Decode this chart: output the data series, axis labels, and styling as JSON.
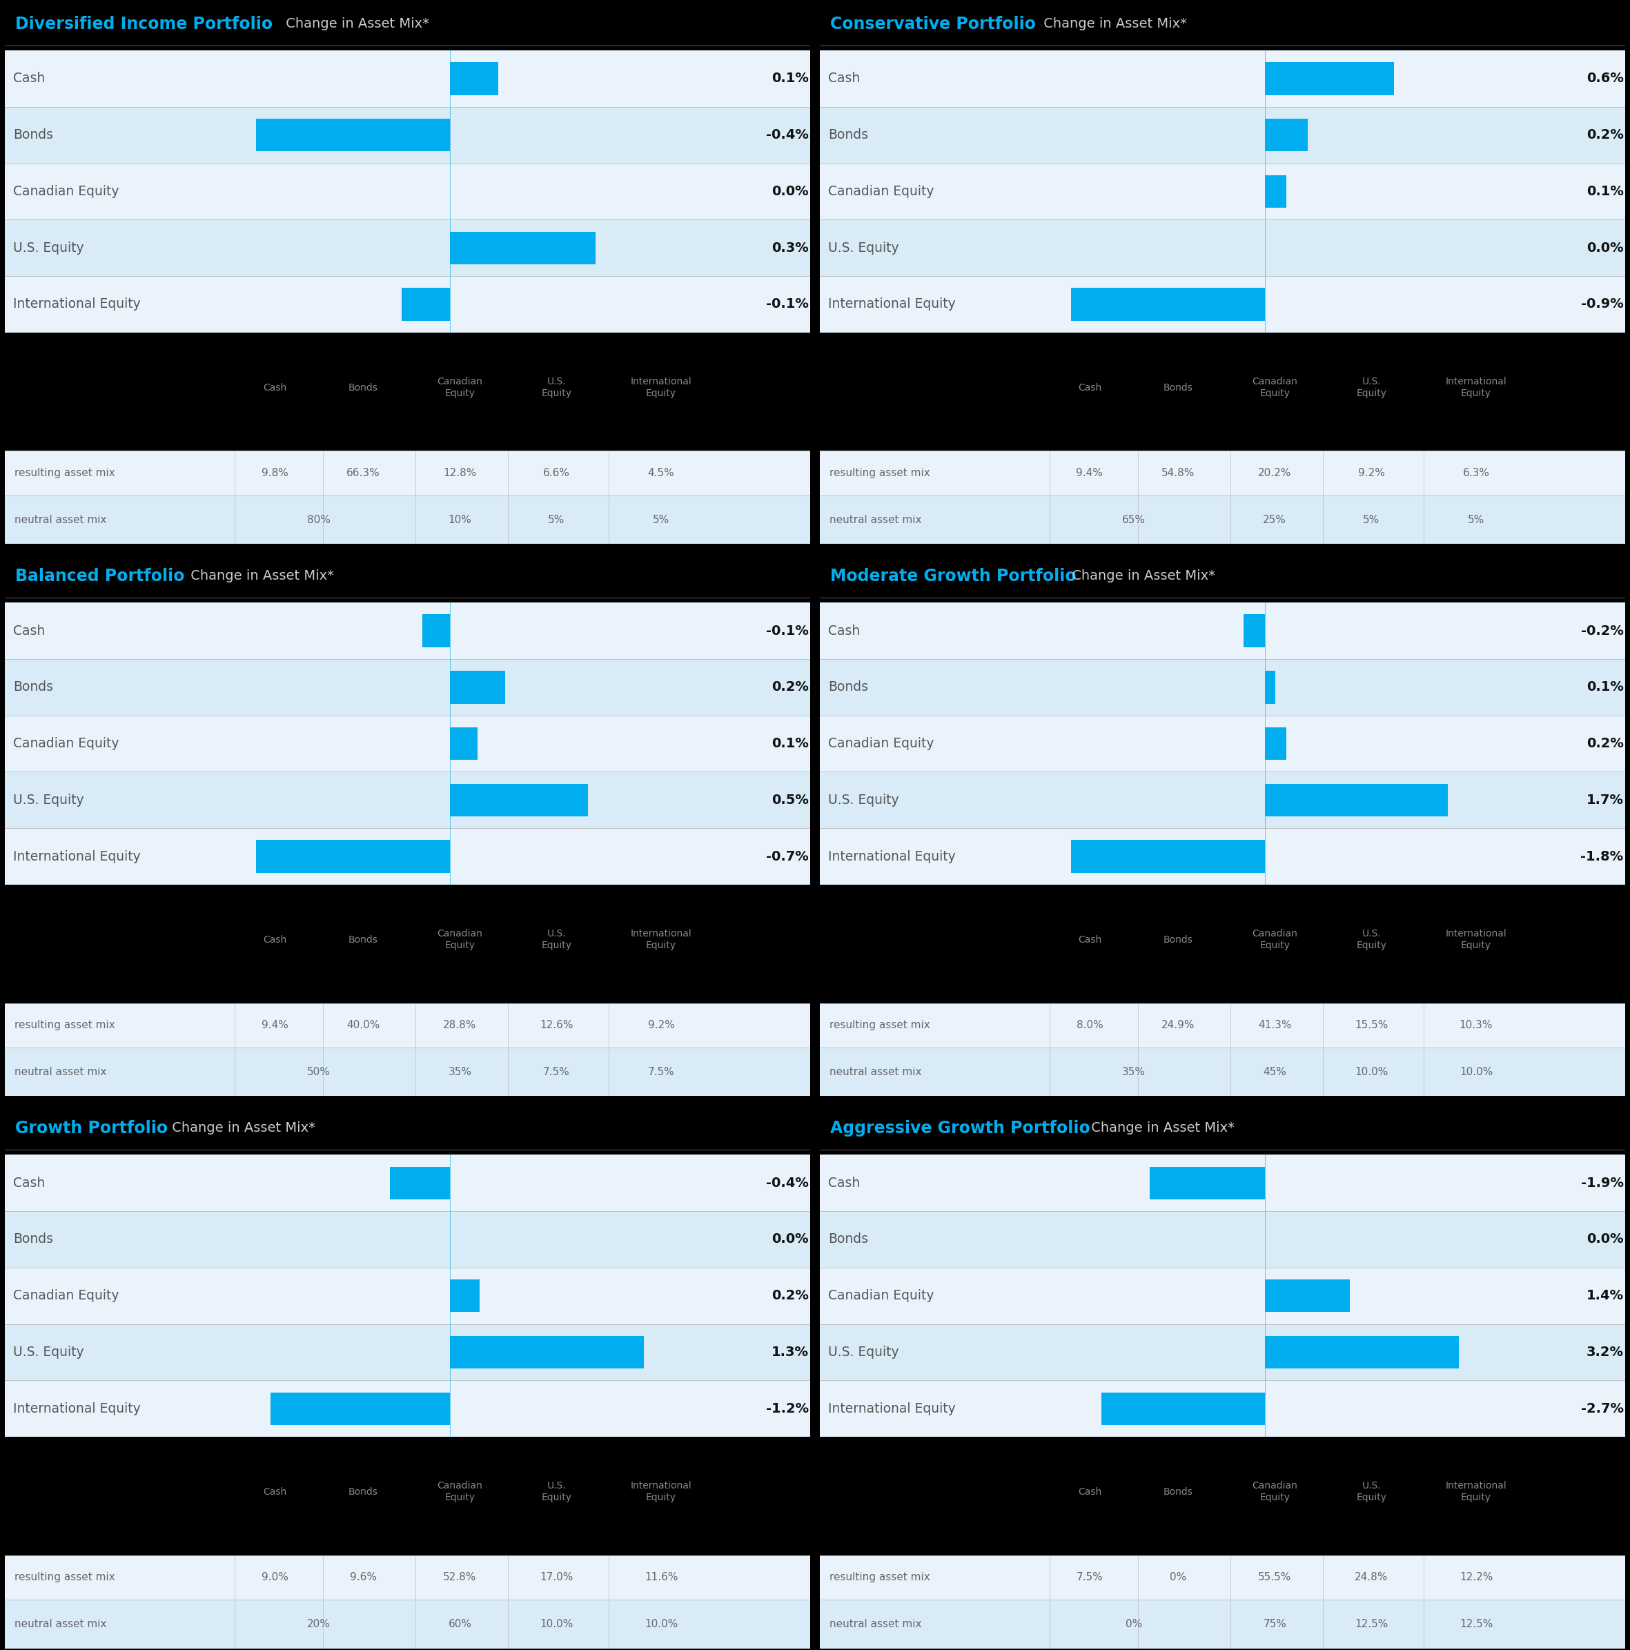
{
  "portfolios": [
    {
      "title_bold": "Diversified Income Portfolio",
      "title_rest": " Change in Asset Mix*",
      "values": [
        0.1,
        -0.4,
        0.0,
        0.3,
        -0.1
      ],
      "value_labels": [
        "0.1%",
        "-0.4%",
        "0.0%",
        "0.3%",
        "-0.1%"
      ],
      "resulting": [
        "9.8%",
        "66.3%",
        "12.8%",
        "6.6%",
        "4.5%"
      ],
      "neutral_merge_val": "80%",
      "neutral_rest": [
        "10%",
        "5%",
        "5%"
      ]
    },
    {
      "title_bold": "Conservative Portfolio",
      "title_rest": " Change in Asset Mix*",
      "values": [
        0.6,
        0.2,
        0.1,
        0.0,
        -0.9
      ],
      "value_labels": [
        "0.6%",
        "0.2%",
        "0.1%",
        "0.0%",
        "-0.9%"
      ],
      "resulting": [
        "9.4%",
        "54.8%",
        "20.2%",
        "9.2%",
        "6.3%"
      ],
      "neutral_merge_val": "65%",
      "neutral_rest": [
        "25%",
        "5%",
        "5%"
      ]
    },
    {
      "title_bold": "Balanced Portfolio",
      "title_rest": " Change in Asset Mix*",
      "values": [
        -0.1,
        0.2,
        0.1,
        0.5,
        -0.7
      ],
      "value_labels": [
        "-0.1%",
        "0.2%",
        "0.1%",
        "0.5%",
        "-0.7%"
      ],
      "resulting": [
        "9.4%",
        "40.0%",
        "28.8%",
        "12.6%",
        "9.2%"
      ],
      "neutral_merge_val": "50%",
      "neutral_rest": [
        "35%",
        "7.5%",
        "7.5%"
      ]
    },
    {
      "title_bold": "Moderate Growth Portfolio",
      "title_rest": " Change in Asset Mix*",
      "values": [
        -0.2,
        0.1,
        0.2,
        1.7,
        -1.8
      ],
      "value_labels": [
        "-0.2%",
        "0.1%",
        "0.2%",
        "1.7%",
        "-1.8%"
      ],
      "resulting": [
        "8.0%",
        "24.9%",
        "41.3%",
        "15.5%",
        "10.3%"
      ],
      "neutral_merge_val": "35%",
      "neutral_rest": [
        "45%",
        "10.0%",
        "10.0%"
      ]
    },
    {
      "title_bold": "Growth Portfolio",
      "title_rest": " Change in Asset Mix*",
      "values": [
        -0.4,
        0.0,
        0.2,
        1.3,
        -1.2
      ],
      "value_labels": [
        "-0.4%",
        "0.0%",
        "0.2%",
        "1.3%",
        "-1.2%"
      ],
      "resulting": [
        "9.0%",
        "9.6%",
        "52.8%",
        "17.0%",
        "11.6%"
      ],
      "neutral_merge_val": "20%",
      "neutral_rest": [
        "60%",
        "10.0%",
        "10.0%"
      ]
    },
    {
      "title_bold": "Aggressive Growth Portfolio",
      "title_rest": " Change in Asset Mix*",
      "values": [
        -1.9,
        0.0,
        1.4,
        3.2,
        -2.7
      ],
      "value_labels": [
        "-1.9%",
        "0.0%",
        "1.4%",
        "3.2%",
        "-2.7%"
      ],
      "resulting": [
        "7.5%",
        "0%",
        "55.5%",
        "24.8%",
        "12.2%"
      ],
      "neutral_merge_val": "0%",
      "neutral_rest": [
        "75%",
        "12.5%",
        "12.5%"
      ]
    }
  ],
  "categories": [
    "Cash",
    "Bonds",
    "Canadian Equity",
    "U.S. Equity",
    "International Equity"
  ],
  "table_headers": [
    "Cash",
    "Bonds",
    "Canadian\nEquity",
    "U.S.\nEquity",
    "International\nEquity"
  ],
  "bar_color": "#00AEEF",
  "title_bg_color": "#000000",
  "title_bold_color": "#00AEEF",
  "title_rest_color": "#CCCCCC",
  "row_bg_even": "#EAF3FB",
  "row_bg_odd": "#D8EBF7",
  "table_bg": "#000000",
  "table_text_color": "#888888",
  "row_text_color": "#666666",
  "label_text_color": "#555555",
  "value_text_color": "#111111",
  "separator_color": "#BBBBBB",
  "gap_color": "#111111",
  "panel_border_color": "#333333"
}
